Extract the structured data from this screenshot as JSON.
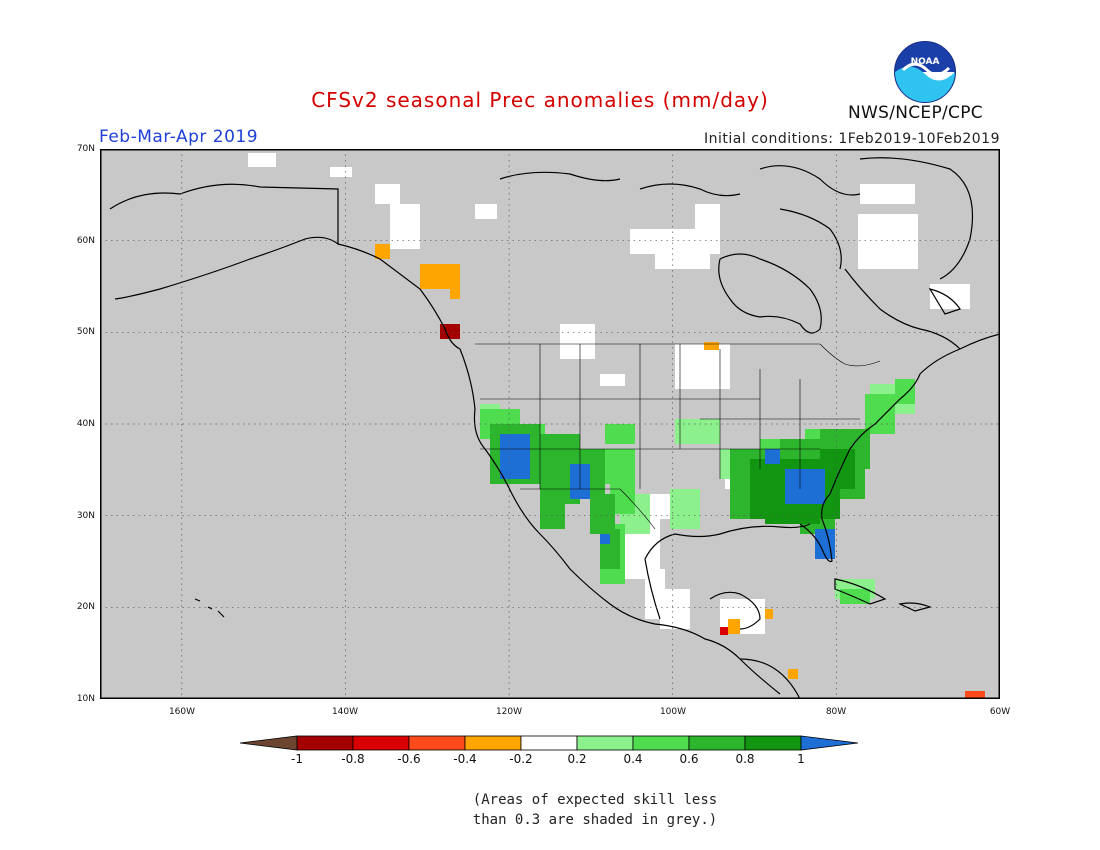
{
  "title": "CFSv2 seasonal Prec anomalies (mm/day)",
  "season": "Feb-Mar-Apr 2019",
  "initial_conditions": "Initial conditions: 1Feb2019-10Feb2019",
  "agency": "NWS/NCEP/CPC",
  "logo": {
    "text": "NOAA",
    "icon": "noaa-logo-icon"
  },
  "map": {
    "projection": "equirectangular",
    "lon_range": [
      -170,
      -60
    ],
    "lat_range": [
      10,
      70
    ],
    "lat_labels": [
      "70N",
      "60N",
      "50N",
      "40N",
      "30N",
      "20N",
      "10N"
    ],
    "lon_labels": [
      "160W",
      "140W",
      "120W",
      "100W",
      "80W",
      "60W"
    ],
    "gridlines": "dotted",
    "background_color": "#c8c8c8"
  },
  "colorbar": {
    "labels": [
      "-1",
      "-0.8",
      "-0.6",
      "-0.4",
      "-0.2",
      "0.2",
      "0.4",
      "0.6",
      "0.8",
      "1"
    ],
    "colors": [
      "#6b4530",
      "#a50000",
      "#d80000",
      "#ff4a1c",
      "#ffa500",
      "#ffffff",
      "#8cf08c",
      "#4fdc4f",
      "#2db52d",
      "#129612",
      "#1d6fd6"
    ]
  },
  "note": [
    "(Areas of expected skill less",
    "than 0.3 are shaded in grey.)"
  ]
}
